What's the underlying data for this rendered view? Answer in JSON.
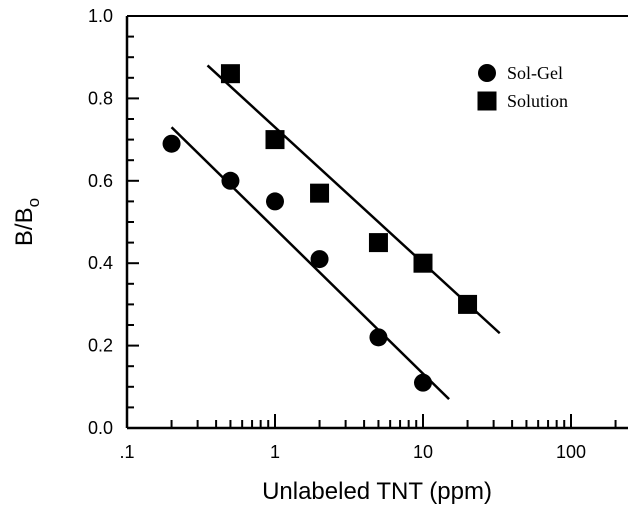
{
  "chart_data": {
    "type": "scatter",
    "xscale": "log",
    "xlim": [
      0.1,
      300
    ],
    "ylim": [
      0.0,
      1.0
    ],
    "xlabel": "Unlabeled TNT (ppm)",
    "ylabel": "B/B",
    "ylabel_subscript": "o",
    "x_tick_labels": [
      {
        "value": 0.1,
        "label": ".1"
      },
      {
        "value": 1,
        "label": "1"
      },
      {
        "value": 10,
        "label": "10"
      },
      {
        "value": 100,
        "label": "100"
      }
    ],
    "y_tick_labels": [
      {
        "value": 0.0,
        "label": "0.0"
      },
      {
        "value": 0.2,
        "label": "0.2"
      },
      {
        "value": 0.4,
        "label": "0.4"
      },
      {
        "value": 0.6,
        "label": "0.6"
      },
      {
        "value": 0.8,
        "label": "0.8"
      },
      {
        "value": 1.0,
        "label": "1.0"
      }
    ],
    "grid": false,
    "legend_position": "top-right",
    "series": [
      {
        "name": "Sol-Gel",
        "marker": "circle",
        "color": "#000000",
        "points": [
          {
            "x": 0.2,
            "y": 0.69
          },
          {
            "x": 0.5,
            "y": 0.6
          },
          {
            "x": 1,
            "y": 0.55
          },
          {
            "x": 2,
            "y": 0.41
          },
          {
            "x": 5,
            "y": 0.22
          },
          {
            "x": 10,
            "y": 0.11
          }
        ],
        "fit_line": {
          "x": [
            0.2,
            15
          ],
          "y": [
            0.73,
            0.07
          ]
        }
      },
      {
        "name": "Solution",
        "marker": "square",
        "color": "#000000",
        "points": [
          {
            "x": 0.5,
            "y": 0.86
          },
          {
            "x": 1,
            "y": 0.7
          },
          {
            "x": 2,
            "y": 0.57
          },
          {
            "x": 5,
            "y": 0.45
          },
          {
            "x": 10,
            "y": 0.4
          },
          {
            "x": 20,
            "y": 0.3
          }
        ],
        "fit_line": {
          "x": [
            0.35,
            33
          ],
          "y": [
            0.88,
            0.23
          ]
        }
      }
    ]
  }
}
